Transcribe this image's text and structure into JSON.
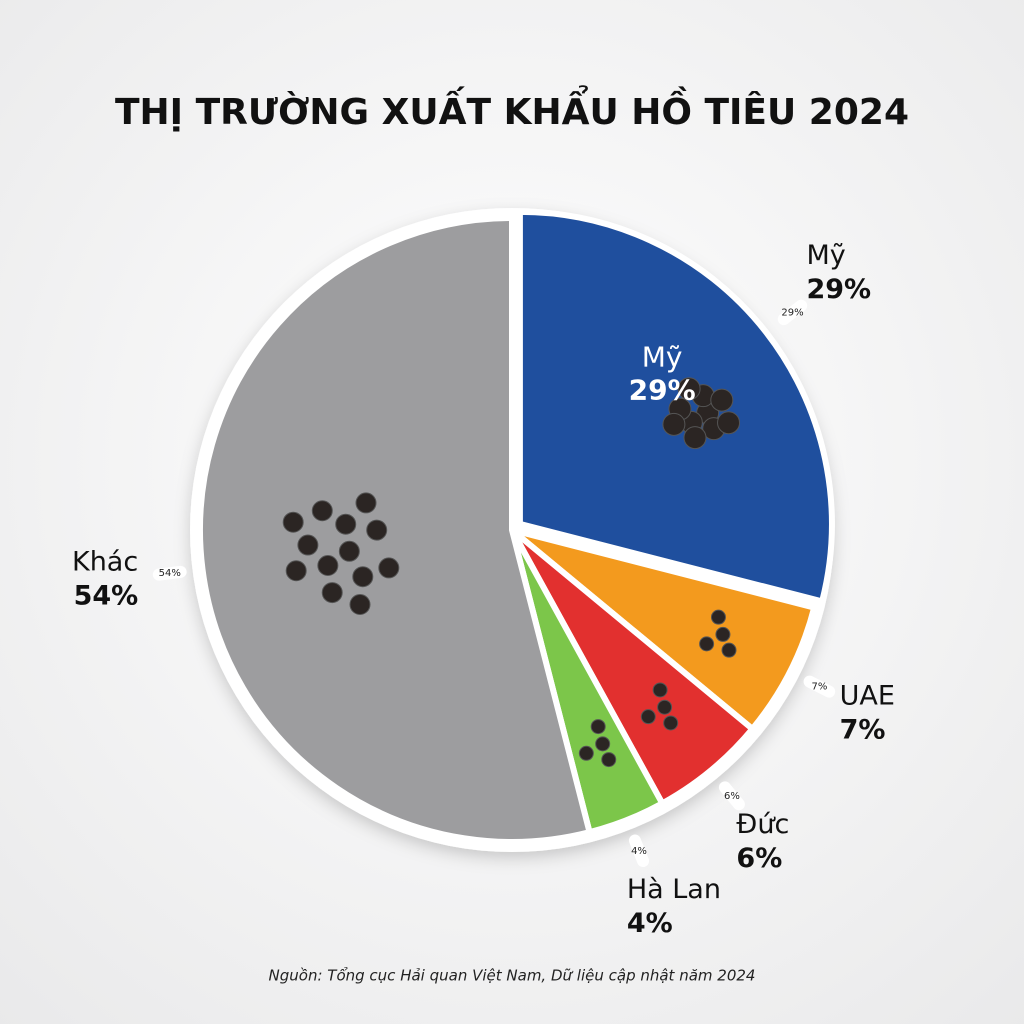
{
  "chart_data": {
    "type": "pie",
    "title": "THỊ TRƯỜNG XUẤT KHẨU HỒ TIÊU 2024",
    "categories": [
      "Mỹ",
      "UAE",
      "Đức",
      "Hà Lan",
      "Khác"
    ],
    "values": [
      29,
      7,
      6,
      4,
      54
    ],
    "value_labels": [
      "29%",
      "7%",
      "6%",
      "4%",
      "54%"
    ],
    "colors": [
      "#1f4f9e",
      "#f39a1e",
      "#e2302f",
      "#7cc64a",
      "#9d9d9f"
    ],
    "source": "Nguồn: Tổng cục Hải quan Việt Nam, Dữ liệu cập nhật năm 2024"
  }
}
